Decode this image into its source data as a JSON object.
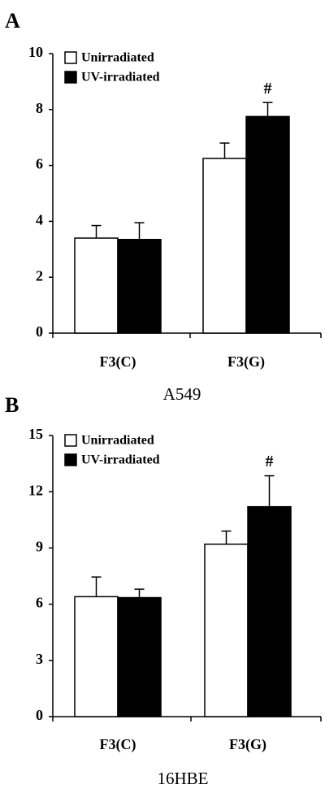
{
  "chart_data": [
    {
      "panel": "A",
      "type": "bar",
      "categories": [
        "F3(C)",
        "F3(G)"
      ],
      "series": [
        {
          "name": "Unirradiated",
          "values": [
            3.4,
            6.25
          ],
          "errors": [
            0.45,
            0.55
          ],
          "color": "#ffffff"
        },
        {
          "name": "UV-irradiated",
          "values": [
            3.35,
            7.75
          ],
          "errors": [
            0.6,
            0.5
          ],
          "color": "#000000"
        }
      ],
      "annotations": [
        {
          "category": "F3(G)",
          "series": "UV-irradiated",
          "text": "#"
        }
      ],
      "xlabel": "A549",
      "ylabel": "",
      "ylim": [
        0,
        10
      ],
      "yticks": [
        0,
        2,
        4,
        6,
        8,
        10
      ],
      "grid": false,
      "legend": "top-left"
    },
    {
      "panel": "B",
      "type": "bar",
      "categories": [
        "F3(C)",
        "F3(G)"
      ],
      "series": [
        {
          "name": "Unirradiated",
          "values": [
            6.4,
            9.2
          ],
          "errors": [
            1.05,
            0.7
          ],
          "color": "#ffffff"
        },
        {
          "name": "UV-irradiated",
          "values": [
            6.35,
            11.2
          ],
          "errors": [
            0.45,
            1.65
          ],
          "color": "#000000"
        }
      ],
      "annotations": [
        {
          "category": "F3(G)",
          "series": "UV-irradiated",
          "text": "#"
        }
      ],
      "xlabel": "16HBE",
      "ylabel": "",
      "ylim": [
        0,
        15
      ],
      "yticks": [
        0,
        3,
        6,
        9,
        12,
        15
      ],
      "grid": false,
      "legend": "top-left"
    }
  ]
}
